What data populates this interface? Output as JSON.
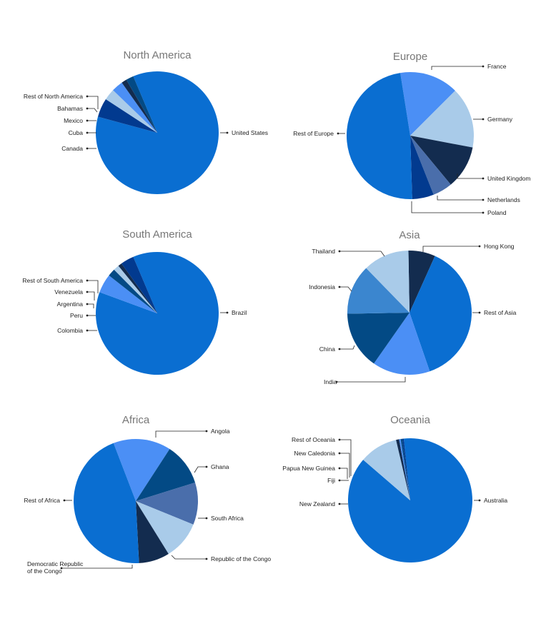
{
  "chart_data": [
    {
      "type": "pie",
      "title": "North America",
      "slices": [
        {
          "label": "United States",
          "value": 85.6,
          "color": "#0a6ed1"
        },
        {
          "label": "Canada",
          "value": 5.0,
          "color": "#023a8f"
        },
        {
          "label": "Cuba",
          "value": 3.0,
          "color": "#a9cbe9"
        },
        {
          "label": "Mexico",
          "value": 3.0,
          "color": "#4b8ff5"
        },
        {
          "label": "Bahamas",
          "value": 1.4,
          "color": "#132c4f"
        },
        {
          "label": "Rest of North America",
          "value": 2.0,
          "color": "#034a85"
        }
      ]
    },
    {
      "type": "pie",
      "title": "Europe",
      "slices": [
        {
          "label": "France",
          "value": 15.0,
          "color": "#4b8ff5"
        },
        {
          "label": "Germany",
          "value": 15.5,
          "color": "#a9cbe9"
        },
        {
          "label": "United Kingdom",
          "value": 11.0,
          "color": "#132c4f"
        },
        {
          "label": "Netherlands",
          "value": 5.0,
          "color": "#4a6eab"
        },
        {
          "label": "Poland",
          "value": 5.5,
          "color": "#023a8f"
        },
        {
          "label": "Rest of Europe",
          "value": 48.0,
          "color": "#0a6ed1"
        }
      ]
    },
    {
      "type": "pie",
      "title": "South America",
      "slices": [
        {
          "label": "Brazil",
          "value": 87.0,
          "color": "#0a6ed1"
        },
        {
          "label": "Colombia",
          "value": 5.0,
          "color": "#4b8ff5"
        },
        {
          "label": "Peru",
          "value": 2.0,
          "color": "#034a85"
        },
        {
          "label": "Argentina",
          "value": 1.5,
          "color": "#a9cbe9"
        },
        {
          "label": "Venezuela",
          "value": 1.0,
          "color": "#132c4f"
        },
        {
          "label": "Rest of South America",
          "value": 3.5,
          "color": "#023a8f"
        }
      ]
    },
    {
      "type": "pie",
      "title": "Asia",
      "slices": [
        {
          "label": "Hong Kong",
          "value": 7.0,
          "color": "#132c4f"
        },
        {
          "label": "Rest of Asia",
          "value": 38.0,
          "color": "#0a6ed1"
        },
        {
          "label": "India",
          "value": 15.0,
          "color": "#4b8ff5"
        },
        {
          "label": "China",
          "value": 15.0,
          "color": "#034a85"
        },
        {
          "label": "Indonesia",
          "value": 13.0,
          "color": "#3b86cf"
        },
        {
          "label": "Thailand",
          "value": 12.0,
          "color": "#a9cbe9"
        }
      ]
    },
    {
      "type": "pie",
      "title": "Africa",
      "slices": [
        {
          "label": "Angola",
          "value": 15.0,
          "color": "#4b8ff5"
        },
        {
          "label": "Ghana",
          "value": 11.0,
          "color": "#034a85"
        },
        {
          "label": "South Africa",
          "value": 11.0,
          "color": "#4a6eab"
        },
        {
          "label": "Republic of the Congo",
          "value": 10.0,
          "color": "#a9cbe9"
        },
        {
          "label": "Democratic Republic of the Congo",
          "value": 8.0,
          "color": "#132c4f"
        },
        {
          "label": "Rest of Africa",
          "value": 45.0,
          "color": "#0a6ed1"
        }
      ]
    },
    {
      "type": "pie",
      "title": "Oceania",
      "slices": [
        {
          "label": "Australia",
          "value": 88.0,
          "color": "#0a6ed1"
        },
        {
          "label": "New Zealand",
          "value": 10.0,
          "color": "#a9cbe9"
        },
        {
          "label": "Fiji",
          "value": 0.8,
          "color": "#132c4f"
        },
        {
          "label": "Papua New Guinea",
          "value": 0.4,
          "color": "#4b8ff5"
        },
        {
          "label": "New Caledonia",
          "value": 0.4,
          "color": "#034a85"
        },
        {
          "label": "Rest of Oceania",
          "value": 0.4,
          "color": "#023a8f"
        }
      ]
    }
  ]
}
